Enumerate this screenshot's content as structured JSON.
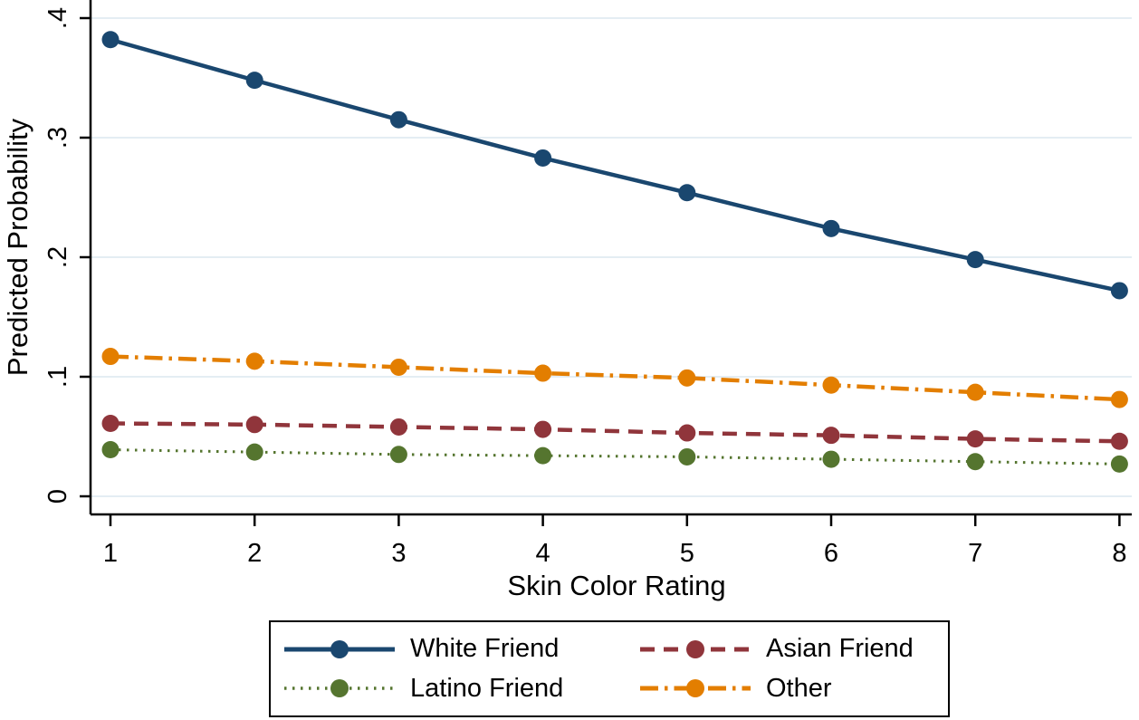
{
  "chart_data": {
    "type": "line",
    "title": "",
    "xlabel": "Skin Color Rating",
    "ylabel": "Predicted Probability",
    "x": [
      1,
      2,
      3,
      4,
      5,
      6,
      7,
      8
    ],
    "x_tick_labels": [
      "1",
      "2",
      "3",
      "4",
      "5",
      "6",
      "7",
      "8"
    ],
    "y_ticks": [
      0,
      0.1,
      0.2,
      0.3,
      0.4
    ],
    "y_tick_labels": [
      "0",
      ".1",
      ".2",
      ".3",
      ".4"
    ],
    "xlim": [
      0.86,
      8.09
    ],
    "ylim": [
      -0.015,
      0.415
    ],
    "grid": true,
    "gridline_color": "#e4edf3",
    "axis_color": "#000000",
    "background_color": "#ffffff",
    "legend_position": "bottom",
    "marker": "circle",
    "series": [
      {
        "name": "White Friend",
        "color": "#1a476f",
        "line_style": "solid",
        "line_width": 4.5,
        "values": [
          0.382,
          0.348,
          0.315,
          0.283,
          0.254,
          0.224,
          0.198,
          0.172
        ]
      },
      {
        "name": "Asian Friend",
        "color": "#90353b",
        "line_style": "dash",
        "line_width": 4.5,
        "values": [
          0.061,
          0.06,
          0.058,
          0.056,
          0.053,
          0.051,
          0.048,
          0.046
        ]
      },
      {
        "name": "Latino Friend",
        "color": "#55752f",
        "line_style": "dot",
        "line_width": 3,
        "values": [
          0.039,
          0.037,
          0.035,
          0.034,
          0.033,
          0.031,
          0.029,
          0.027
        ]
      },
      {
        "name": "Other",
        "color": "#e37e00",
        "line_style": "dash-dot",
        "line_width": 4.5,
        "values": [
          0.117,
          0.113,
          0.108,
          0.103,
          0.099,
          0.093,
          0.087,
          0.081
        ]
      }
    ]
  }
}
